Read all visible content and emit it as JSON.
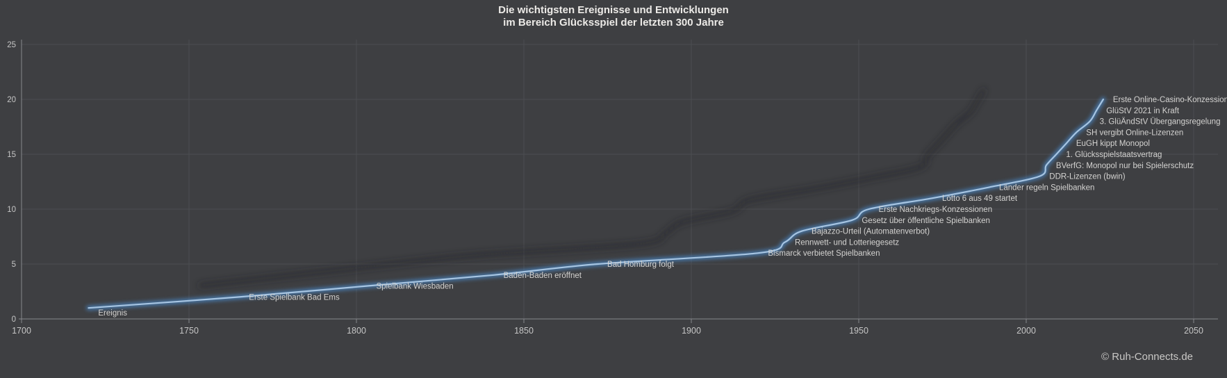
{
  "title": {
    "line1": "Die wichtigsten Ereignisse und Entwicklungen",
    "line2": "im Bereich Glücksspiel der letzten 300 Jahre"
  },
  "footer": {
    "copyright": "© Ruh-Connects.de"
  },
  "colors": {
    "background": "#3e3f42",
    "gridline": "#4c4d51",
    "axis_line": "#87888c",
    "tick_label": "#c6c6c6",
    "event_label": "#d4d3d1",
    "line_core": "#a7c5e2",
    "line_glow": "#4a80b8",
    "line_shadow": "#212226",
    "title_text": "#eceae7",
    "copyright_text": "#c9c8c6"
  },
  "chart_data": {
    "type": "line",
    "title": "Die wichtigsten Ereignisse und Entwicklungen im Bereich Glücksspiel der letzten 300 Jahre",
    "series_name": "Ereignis",
    "grid": true,
    "legend": false,
    "smoothed": true,
    "x_axis": {
      "label": "",
      "min": 1700,
      "max": 2050,
      "tick_step": 50,
      "ticks": [
        1700,
        1750,
        1800,
        1850,
        1900,
        1950,
        2000,
        2050
      ]
    },
    "y_axis": {
      "label": "",
      "min": 0,
      "max": 25,
      "tick_step": 5,
      "ticks": [
        0,
        5,
        10,
        15,
        20,
        25
      ]
    },
    "points": [
      {
        "year": 1720,
        "value": 1,
        "label": "Ereignis"
      },
      {
        "year": 1765,
        "value": 2,
        "label": "Erste Spielbank Bad Ems"
      },
      {
        "year": 1803,
        "value": 3,
        "label": "Spielbank Wiesbaden"
      },
      {
        "year": 1841,
        "value": 4,
        "label": "Baden-Baden eröffnet"
      },
      {
        "year": 1872,
        "value": 5,
        "label": "Bad Homburg folgt"
      },
      {
        "year": 1920,
        "value": 6,
        "label": "Bismarck verbietet Spielbanken"
      },
      {
        "year": 1928,
        "value": 7,
        "label": "Rennwett- und Lotteriegesetz"
      },
      {
        "year": 1933,
        "value": 8,
        "label": "Bajazzo-Urteil (Automatenverbot)"
      },
      {
        "year": 1948,
        "value": 9,
        "label": "Gesetz über öffentliche Spielbanken"
      },
      {
        "year": 1953,
        "value": 10,
        "label": "Erste Nachkriegs-Konzessionen"
      },
      {
        "year": 1972,
        "value": 11,
        "label": "Lotto 6 aus 49 startet"
      },
      {
        "year": 1989,
        "value": 12,
        "label": "Länder regeln Spielbanken"
      },
      {
        "year": 2004,
        "value": 13,
        "label": "DDR-Lizenzen (bwin)"
      },
      {
        "year": 2006,
        "value": 14,
        "label": "BVerfG: Monopol nur bei Spielerschutz"
      },
      {
        "year": 2009,
        "value": 15,
        "label": "1. Glücksspielstaatsvertrag"
      },
      {
        "year": 2012,
        "value": 16,
        "label": "EuGH kippt Monopol"
      },
      {
        "year": 2015,
        "value": 17,
        "label": "SH vergibt Online-Lizenzen"
      },
      {
        "year": 2019,
        "value": 18,
        "label": "3. GlüÄndStV Übergangsregelung"
      },
      {
        "year": 2021,
        "value": 19,
        "label": "GlüStV 2021 in Kraft"
      },
      {
        "year": 2023,
        "value": 20,
        "label": "Erste Online-Casino-Konzessionen"
      }
    ]
  }
}
